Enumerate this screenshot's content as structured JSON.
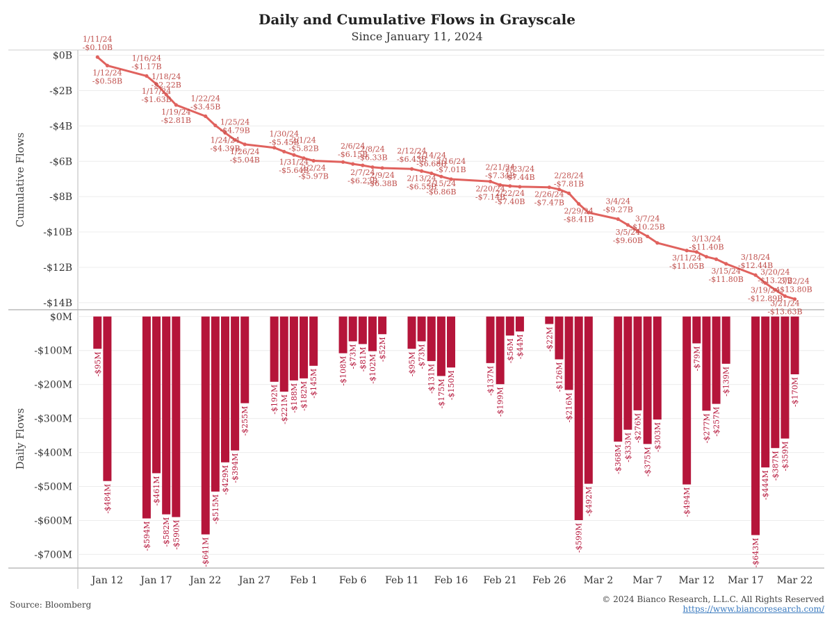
{
  "chart_data": {
    "type": "line+bar",
    "title": "Daily and Cumulative Flows in Grayscale",
    "subtitle": "Since January 11, 2024",
    "cumulative": {
      "ylabel": "Cumulative Flows",
      "ylim": [
        -14.4,
        0.3
      ],
      "yticks": [
        0,
        -2,
        -4,
        -6,
        -8,
        -10,
        -12,
        -14
      ],
      "ytick_labels": [
        "$0B",
        "-$2B",
        "-$4B",
        "-$6B",
        "-$8B",
        "-$10B",
        "-$12B",
        "-$14B"
      ],
      "color": "#e0625e",
      "points": [
        {
          "x": "2024-01-11",
          "y": -0.1,
          "date": "1/11/24",
          "label": "-$0.10B"
        },
        {
          "x": "2024-01-12",
          "y": -0.58,
          "date": "1/12/24",
          "label": "-$0.58B"
        },
        {
          "x": "2024-01-16",
          "y": -1.17,
          "date": "1/16/24",
          "label": "-$1.17B"
        },
        {
          "x": "2024-01-17",
          "y": -1.63,
          "date": "1/17/24",
          "label": "-$1.63B"
        },
        {
          "x": "2024-01-18",
          "y": -2.22,
          "date": "1/18/24",
          "label": "-$2.22B"
        },
        {
          "x": "2024-01-19",
          "y": -2.81,
          "date": "1/19/24",
          "label": "-$2.81B"
        },
        {
          "x": "2024-01-22",
          "y": -3.45,
          "date": "1/22/24",
          "label": "-$3.45B"
        },
        {
          "x": "2024-01-23",
          "y": -3.97,
          "date": "",
          "label": ""
        },
        {
          "x": "2024-01-24",
          "y": -4.39,
          "date": "1/24/24",
          "label": "-$4.39B"
        },
        {
          "x": "2024-01-25",
          "y": -4.79,
          "date": "1/25/24",
          "label": "-$4.79B"
        },
        {
          "x": "2024-01-26",
          "y": -5.04,
          "date": "1/26/24",
          "label": "-$5.04B"
        },
        {
          "x": "2024-01-29",
          "y": -5.23,
          "date": "",
          "label": ""
        },
        {
          "x": "2024-01-30",
          "y": -5.45,
          "date": "1/30/24",
          "label": "-$5.45B"
        },
        {
          "x": "2024-01-31",
          "y": -5.64,
          "date": "1/31/24",
          "label": "-$5.64B"
        },
        {
          "x": "2024-02-01",
          "y": -5.82,
          "date": "2/1/24",
          "label": "-$5.82B"
        },
        {
          "x": "2024-02-02",
          "y": -5.97,
          "date": "2/2/24",
          "label": "-$5.97B"
        },
        {
          "x": "2024-02-05",
          "y": -6.04,
          "date": "",
          "label": ""
        },
        {
          "x": "2024-02-06",
          "y": -6.15,
          "date": "2/6/24",
          "label": "-$6.15B"
        },
        {
          "x": "2024-02-07",
          "y": -6.23,
          "date": "2/7/24",
          "label": "-$6.23B"
        },
        {
          "x": "2024-02-08",
          "y": -6.33,
          "date": "2/8/24",
          "label": "-$6.33B"
        },
        {
          "x": "2024-02-09",
          "y": -6.38,
          "date": "2/9/24",
          "label": "-$6.38B"
        },
        {
          "x": "2024-02-12",
          "y": -6.43,
          "date": "2/12/24",
          "label": "-$6.43B"
        },
        {
          "x": "2024-02-13",
          "y": -6.55,
          "date": "2/13/24",
          "label": "-$6.55B"
        },
        {
          "x": "2024-02-14",
          "y": -6.68,
          "date": "2/14/24",
          "label": "-$6.68B"
        },
        {
          "x": "2024-02-15",
          "y": -6.86,
          "date": "2/15/24",
          "label": "-$6.86B"
        },
        {
          "x": "2024-02-16",
          "y": -7.01,
          "date": "2/16/24",
          "label": "-$7.01B"
        },
        {
          "x": "2024-02-20",
          "y": -7.14,
          "date": "2/20/24",
          "label": "-$7.14B"
        },
        {
          "x": "2024-02-21",
          "y": -7.34,
          "date": "2/21/24",
          "label": "-$7.34B"
        },
        {
          "x": "2024-02-22",
          "y": -7.4,
          "date": "2/22/24",
          "label": "-$7.40B"
        },
        {
          "x": "2024-02-23",
          "y": -7.44,
          "date": "2/23/24",
          "label": "-$7.44B"
        },
        {
          "x": "2024-02-26",
          "y": -7.47,
          "date": "2/26/24",
          "label": "-$7.47B"
        },
        {
          "x": "2024-02-27",
          "y": -7.59,
          "date": "",
          "label": ""
        },
        {
          "x": "2024-02-28",
          "y": -7.81,
          "date": "2/28/24",
          "label": "-$7.81B"
        },
        {
          "x": "2024-02-29",
          "y": -8.41,
          "date": "2/29/24",
          "label": "-$8.41B"
        },
        {
          "x": "2024-03-01",
          "y": -8.9,
          "date": "",
          "label": ""
        },
        {
          "x": "2024-03-04",
          "y": -9.27,
          "date": "3/4/24",
          "label": "-$9.27B"
        },
        {
          "x": "2024-03-05",
          "y": -9.6,
          "date": "3/5/24",
          "label": "-$9.60B"
        },
        {
          "x": "2024-03-06",
          "y": -9.94,
          "date": "",
          "label": ""
        },
        {
          "x": "2024-03-07",
          "y": -10.25,
          "date": "3/7/24",
          "label": "-$10.25B"
        },
        {
          "x": "2024-03-08",
          "y": -10.62,
          "date": "",
          "label": ""
        },
        {
          "x": "2024-03-11",
          "y": -11.05,
          "date": "3/11/24",
          "label": "-$11.05B"
        },
        {
          "x": "2024-03-12",
          "y": -11.13,
          "date": "",
          "label": ""
        },
        {
          "x": "2024-03-13",
          "y": -11.4,
          "date": "3/13/24",
          "label": "-$11.40B"
        },
        {
          "x": "2024-03-14",
          "y": -11.54,
          "date": "",
          "label": ""
        },
        {
          "x": "2024-03-15",
          "y": -11.8,
          "date": "3/15/24",
          "label": "-$11.80B"
        },
        {
          "x": "2024-03-18",
          "y": -12.44,
          "date": "3/18/24",
          "label": "-$12.44B"
        },
        {
          "x": "2024-03-19",
          "y": -12.89,
          "date": "3/19/24",
          "label": "-$12.89B"
        },
        {
          "x": "2024-03-20",
          "y": -13.27,
          "date": "3/20/24",
          "label": "-$13.27B"
        },
        {
          "x": "2024-03-21",
          "y": -13.63,
          "date": "3/21/24",
          "label": "-$13.63B"
        },
        {
          "x": "2024-03-22",
          "y": -13.8,
          "date": "3/22/24",
          "label": "-$13.80B"
        }
      ]
    },
    "daily": {
      "ylabel": "Daily Flows",
      "ylim": [
        -740,
        20
      ],
      "yticks": [
        0,
        -100,
        -200,
        -300,
        -400,
        -500,
        -600,
        -700
      ],
      "ytick_labels": [
        "$0M",
        "-$100M",
        "-$200M",
        "-$300M",
        "-$400M",
        "-$500M",
        "-$600M",
        "-$700M"
      ],
      "color": "#b5153a",
      "bars": [
        {
          "x": "2024-01-11",
          "value": -95,
          "label": "-$95M"
        },
        {
          "x": "2024-01-12",
          "value": -484,
          "label": "-$484M"
        },
        {
          "x": "2024-01-16",
          "value": -594,
          "label": "-$594M"
        },
        {
          "x": "2024-01-17",
          "value": -461,
          "label": "-$461M"
        },
        {
          "x": "2024-01-18",
          "value": -582,
          "label": "-$582M"
        },
        {
          "x": "2024-01-19",
          "value": -590,
          "label": "-$590M"
        },
        {
          "x": "2024-01-22",
          "value": -641,
          "label": "-$641M"
        },
        {
          "x": "2024-01-23",
          "value": -515,
          "label": "-$515M"
        },
        {
          "x": "2024-01-24",
          "value": -429,
          "label": "-$429M"
        },
        {
          "x": "2024-01-25",
          "value": -394,
          "label": "-$394M"
        },
        {
          "x": "2024-01-26",
          "value": -255,
          "label": "-$255M"
        },
        {
          "x": "2024-01-29",
          "value": -192,
          "label": "-$192M"
        },
        {
          "x": "2024-01-30",
          "value": -221,
          "label": "-$221M"
        },
        {
          "x": "2024-01-31",
          "value": -188,
          "label": "-$188M"
        },
        {
          "x": "2024-02-01",
          "value": -182,
          "label": "-$182M"
        },
        {
          "x": "2024-02-02",
          "value": -145,
          "label": "-$145M"
        },
        {
          "x": "2024-02-05",
          "value": -108,
          "label": "-$108M"
        },
        {
          "x": "2024-02-06",
          "value": -73,
          "label": "-$73M"
        },
        {
          "x": "2024-02-07",
          "value": -81,
          "label": "-$81M"
        },
        {
          "x": "2024-02-08",
          "value": -102,
          "label": "-$102M"
        },
        {
          "x": "2024-02-09",
          "value": -52,
          "label": "-$52M"
        },
        {
          "x": "2024-02-12",
          "value": -95,
          "label": "-$95M"
        },
        {
          "x": "2024-02-13",
          "value": -73,
          "label": "-$73M"
        },
        {
          "x": "2024-02-14",
          "value": -131,
          "label": "-$131M"
        },
        {
          "x": "2024-02-15",
          "value": -175,
          "label": "-$175M"
        },
        {
          "x": "2024-02-16",
          "value": -150,
          "label": "-$150M"
        },
        {
          "x": "2024-02-20",
          "value": -137,
          "label": "-$137M"
        },
        {
          "x": "2024-02-21",
          "value": -199,
          "label": "-$199M"
        },
        {
          "x": "2024-02-22",
          "value": -56,
          "label": "-$56M"
        },
        {
          "x": "2024-02-23",
          "value": -44,
          "label": "-$44M"
        },
        {
          "x": "2024-02-26",
          "value": -22,
          "label": "-$22M"
        },
        {
          "x": "2024-02-27",
          "value": -126,
          "label": "-$126M"
        },
        {
          "x": "2024-02-28",
          "value": -216,
          "label": "-$216M"
        },
        {
          "x": "2024-02-29",
          "value": -599,
          "label": "-$599M"
        },
        {
          "x": "2024-03-01",
          "value": -492,
          "label": "-$492M"
        },
        {
          "x": "2024-03-04",
          "value": -368,
          "label": "-$368M"
        },
        {
          "x": "2024-03-05",
          "value": -333,
          "label": "-$333M"
        },
        {
          "x": "2024-03-06",
          "value": -276,
          "label": "-$276M"
        },
        {
          "x": "2024-03-07",
          "value": -375,
          "label": "-$375M"
        },
        {
          "x": "2024-03-08",
          "value": -303,
          "label": "-$303M"
        },
        {
          "x": "2024-03-11",
          "value": -494,
          "label": "-$494M"
        },
        {
          "x": "2024-03-12",
          "value": -79,
          "label": "-$79M"
        },
        {
          "x": "2024-03-13",
          "value": -277,
          "label": "-$277M"
        },
        {
          "x": "2024-03-14",
          "value": -257,
          "label": "-$257M"
        },
        {
          "x": "2024-03-15",
          "value": -139,
          "label": "-$139M"
        },
        {
          "x": "2024-03-18",
          "value": -643,
          "label": "-$643M"
        },
        {
          "x": "2024-03-19",
          "value": -444,
          "label": "-$444M"
        },
        {
          "x": "2024-03-20",
          "value": -387,
          "label": "-$387M"
        },
        {
          "x": "2024-03-21",
          "value": -359,
          "label": "-$359M"
        },
        {
          "x": "2024-03-22",
          "value": -170,
          "label": "-$170M"
        }
      ]
    },
    "x_axis": {
      "range": [
        "2024-01-09",
        "2024-03-25"
      ],
      "ticks": [
        {
          "x": "2024-01-12",
          "label": "Jan 12"
        },
        {
          "x": "2024-01-17",
          "label": "Jan 17"
        },
        {
          "x": "2024-01-22",
          "label": "Jan 22"
        },
        {
          "x": "2024-01-27",
          "label": "Jan 27"
        },
        {
          "x": "2024-02-01",
          "label": "Feb 1"
        },
        {
          "x": "2024-02-06",
          "label": "Feb 6"
        },
        {
          "x": "2024-02-11",
          "label": "Feb 11"
        },
        {
          "x": "2024-02-16",
          "label": "Feb 16"
        },
        {
          "x": "2024-02-21",
          "label": "Feb 21"
        },
        {
          "x": "2024-02-26",
          "label": "Feb 26"
        },
        {
          "x": "2024-03-02",
          "label": "Mar 2"
        },
        {
          "x": "2024-03-07",
          "label": "Mar 7"
        },
        {
          "x": "2024-03-12",
          "label": "Mar 12"
        },
        {
          "x": "2024-03-17",
          "label": "Mar 17"
        },
        {
          "x": "2024-03-22",
          "label": "Mar 22"
        }
      ]
    },
    "grid": true
  },
  "footer": {
    "source": "Source: Bloomberg",
    "copyright": "© 2024 Bianco Research, L.L.C. All Rights Reserved",
    "website": "https://www.biancoresearch.com/"
  }
}
